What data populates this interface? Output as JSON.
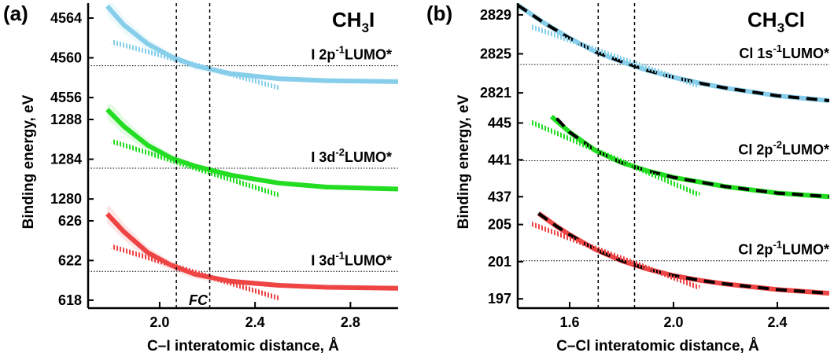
{
  "figure": {
    "panels": [
      {
        "label": "(a)",
        "molecule": "CH3I",
        "molecule_parts": [
          "CH",
          "3",
          "I"
        ],
        "xlabel": "C–I interatomic distance, Å",
        "ylabel": "Binding energy, eV",
        "fc_label": "FC"
      },
      {
        "label": "(b)",
        "molecule": "CH3Cl",
        "molecule_parts": [
          "CH",
          "3",
          "Cl"
        ],
        "xlabel": "C–Cl interatomic distance, Å",
        "ylabel": "Binding energy, eV"
      }
    ]
  },
  "colors": {
    "blue": "#87ceeb",
    "green": "#22dd22",
    "red": "#ee4444",
    "black": "#000000"
  },
  "chart_data": [
    {
      "type": "line",
      "panel": "a",
      "xlabel": "C–I interatomic distance, Å",
      "ylabel": "Binding energy, eV",
      "xlim": [
        1.7,
        3.0
      ],
      "x_ticks": [
        2.0,
        2.4,
        2.8
      ],
      "fc_lines_x": [
        2.07,
        2.21
      ],
      "subplots": [
        {
          "state": "I 2p-1LUMO*",
          "label_parts": [
            "I 2p",
            "-1",
            "LUMO*"
          ],
          "ylim": [
            4555.3,
            4565.5
          ],
          "y_ticks": [
            4556,
            4560,
            4564
          ],
          "ref_y": 4559.2,
          "color": "#87ceeb",
          "series": [
            {
              "style": "solid",
              "x": [
                1.78,
                1.85,
                1.95,
                2.05,
                2.15,
                2.3,
                2.5,
                2.7,
                3.0
              ],
              "y": [
                4565.2,
                4563.3,
                4561.4,
                4560.1,
                4559.2,
                4558.4,
                4557.9,
                4557.7,
                4557.6
              ]
            },
            {
              "style": "hatched",
              "x": [
                1.8,
                2.5
              ],
              "y": [
                4561.6,
                4557.0
              ]
            }
          ]
        },
        {
          "state": "I 3d-2LUMO*",
          "label_parts": [
            "I 3d",
            "-2",
            "LUMO*"
          ],
          "ylim": [
            1279.3,
            1289.5
          ],
          "y_ticks": [
            1280,
            1284,
            1288
          ],
          "ref_y": 1283.1,
          "color": "#22dd22",
          "series": [
            {
              "style": "solid",
              "x": [
                1.78,
                1.85,
                1.95,
                2.05,
                2.15,
                2.3,
                2.5,
                2.7,
                3.0
              ],
              "y": [
                1289.0,
                1287.3,
                1285.4,
                1284.1,
                1283.3,
                1282.4,
                1281.6,
                1281.2,
                1281.0
              ]
            },
            {
              "style": "hatched",
              "x": [
                1.8,
                2.5
              ],
              "y": [
                1285.8,
                1280.4
              ]
            }
          ]
        },
        {
          "state": "I 3d-1LUMO*",
          "label_parts": [
            "I 3d",
            "-1",
            "LUMO*"
          ],
          "ylim": [
            617.2,
            627.5
          ],
          "y_ticks": [
            618,
            622,
            626
          ],
          "ref_y": 620.9,
          "color": "#ee4444",
          "series": [
            {
              "style": "solid",
              "x": [
                1.78,
                1.85,
                1.95,
                2.05,
                2.15,
                2.3,
                2.5,
                2.7,
                3.0
              ],
              "y": [
                626.7,
                624.9,
                622.8,
                621.5,
                620.6,
                619.9,
                619.5,
                619.3,
                619.2
              ]
            },
            {
              "style": "hatched",
              "x": [
                1.8,
                2.5
              ],
              "y": [
                623.4,
                618.2
              ]
            }
          ]
        }
      ]
    },
    {
      "type": "line",
      "panel": "b",
      "xlabel": "C–Cl interatomic distance, Å",
      "ylabel": "Binding energy, eV",
      "xlim": [
        1.4,
        2.6
      ],
      "x_ticks": [
        1.6,
        2.0,
        2.4
      ],
      "fc_lines_x": [
        1.71,
        1.85
      ],
      "subplots": [
        {
          "state": "Cl 1s-1LUMO*",
          "label_parts": [
            "Cl 1s",
            "-1",
            "LUMO*"
          ],
          "ylim": [
            2819.8,
            2830.2
          ],
          "y_ticks": [
            2821,
            2825,
            2829
          ],
          "ref_y": 2823.9,
          "color": "#87ceeb",
          "series": [
            {
              "style": "solid",
              "x": [
                1.4,
                1.5,
                1.6,
                1.7,
                1.8,
                1.9,
                2.0,
                2.1,
                2.2,
                2.4,
                2.6
              ],
              "y": [
                2830.0,
                2828.2,
                2826.6,
                2825.2,
                2824.2,
                2823.3,
                2822.6,
                2822.0,
                2821.5,
                2820.7,
                2820.2
              ]
            },
            {
              "style": "dashed",
              "x": [
                1.4,
                1.5,
                1.6,
                1.7,
                1.8,
                1.9,
                2.0,
                2.1,
                2.2,
                2.4,
                2.6
              ],
              "y": [
                2830.0,
                2828.2,
                2826.6,
                2825.2,
                2824.2,
                2823.3,
                2822.6,
                2822.0,
                2821.5,
                2820.7,
                2820.2
              ]
            },
            {
              "style": "hatched",
              "x": [
                1.45,
                2.1
              ],
              "y": [
                2827.8,
                2821.7
              ]
            }
          ]
        },
        {
          "state": "Cl 2p-2LUMO*",
          "label_parts": [
            "Cl 2p",
            "-2",
            "LUMO*"
          ],
          "ylim": [
            436.0,
            447.0
          ],
          "y_ticks": [
            437,
            441,
            445
          ],
          "ref_y": 440.9,
          "color": "#22dd22",
          "series": [
            {
              "style": "solid",
              "x": [
                1.53,
                1.6,
                1.7,
                1.8,
                1.9,
                2.0,
                2.1,
                2.2,
                2.4,
                2.6
              ],
              "y": [
                445.7,
                444.0,
                442.0,
                440.7,
                439.8,
                439.1,
                438.6,
                438.1,
                437.4,
                437.0
              ]
            },
            {
              "style": "dashed",
              "x": [
                1.55,
                1.6,
                1.7,
                1.8,
                1.9,
                2.0,
                2.1,
                2.2,
                2.4,
                2.6
              ],
              "y": [
                445.5,
                444.0,
                442.0,
                440.7,
                439.8,
                439.1,
                438.6,
                438.1,
                437.4,
                437.0
              ]
            },
            {
              "style": "hatched",
              "x": [
                1.45,
                2.1
              ],
              "y": [
                445.1,
                437.2
              ]
            }
          ]
        },
        {
          "state": "Cl 2p-1LUMO*",
          "label_parts": [
            "Cl 2p",
            "-1",
            "LUMO*"
          ],
          "ylim": [
            196.0,
            207.0
          ],
          "y_ticks": [
            197,
            201,
            205
          ],
          "ref_y": 201.1,
          "color": "#ee4444",
          "series": [
            {
              "style": "solid",
              "x": [
                1.48,
                1.55,
                1.6,
                1.7,
                1.8,
                1.9,
                2.0,
                2.1,
                2.2,
                2.4,
                2.6
              ],
              "y": [
                206.2,
                204.8,
                203.9,
                202.3,
                201.1,
                200.2,
                199.5,
                199.0,
                198.6,
                198.0,
                197.6
              ]
            },
            {
              "style": "dashed",
              "x": [
                1.48,
                1.55,
                1.6,
                1.7,
                1.8,
                1.9,
                2.0,
                2.1,
                2.2,
                2.4,
                2.6
              ],
              "y": [
                206.2,
                204.8,
                203.9,
                202.3,
                201.1,
                200.2,
                199.5,
                199.0,
                198.6,
                198.0,
                197.6
              ]
            },
            {
              "style": "hatched",
              "x": [
                1.45,
                2.1
              ],
              "y": [
                205.1,
                198.2
              ]
            }
          ]
        }
      ]
    }
  ]
}
